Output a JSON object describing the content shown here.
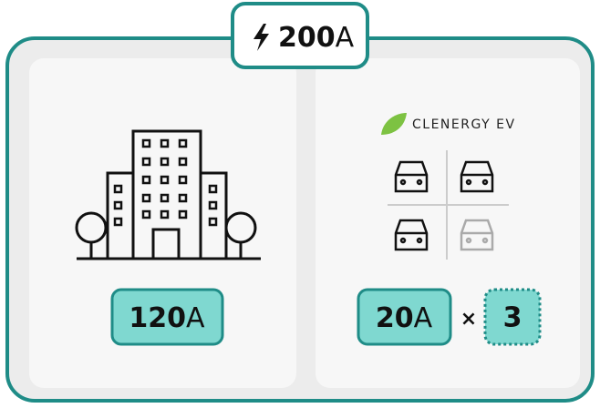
{
  "supply": {
    "amount": "200",
    "unit": "A"
  },
  "building": {
    "amount": "120",
    "unit": "A"
  },
  "chargers": {
    "brand": "CLENERGY EV",
    "per_charger": {
      "amount": "20",
      "unit": "A"
    },
    "multiply": "×",
    "count": "3"
  }
}
